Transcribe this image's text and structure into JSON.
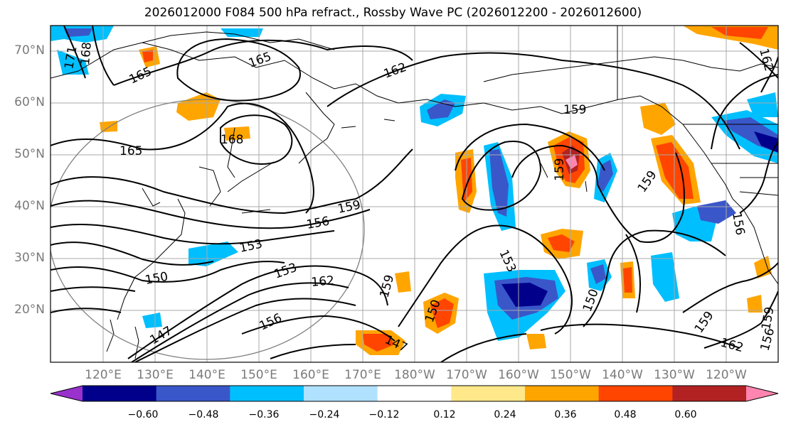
{
  "title": "2026012000 F084 500 hPa refract., Rossby Wave PC (2026012200 - 2026012600)",
  "lat_labels": [
    "70°N",
    "60°N",
    "50°N",
    "40°N",
    "30°N",
    "20°N"
  ],
  "lon_labels": [
    "120°E",
    "130°E",
    "140°E",
    "150°E",
    "160°E",
    "170°E",
    "180°W",
    "170°W",
    "160°W",
    "150°W",
    "140°W",
    "130°W",
    "120°W"
  ],
  "colorbar": {
    "ticks": [
      "−0.60",
      "−0.48",
      "−0.36",
      "−0.24",
      "−0.12",
      "0.12",
      "0.24",
      "0.36",
      "0.48",
      "0.60"
    ],
    "colors": [
      "#9932cc",
      "#00008b",
      "#3a57c9",
      "#00bfff",
      "#b0e2ff",
      "#ffffff",
      "#ffe88a",
      "#ffa500",
      "#ff4500",
      "#b22222",
      "#ff85b0"
    ]
  },
  "contour_labels": [
    "171",
    "168",
    "165",
    "165",
    "165",
    "168",
    "162",
    "159",
    "159",
    "159",
    "156",
    "156",
    "153",
    "153",
    "150",
    "150",
    "147",
    "147",
    "153",
    "150",
    "159",
    "162",
    "162",
    "159",
    "156",
    "159",
    "162",
    "156",
    "159"
  ],
  "colors": {
    "land_line": "#000000",
    "grid": "#a9a9a9",
    "circle": "#808080"
  }
}
